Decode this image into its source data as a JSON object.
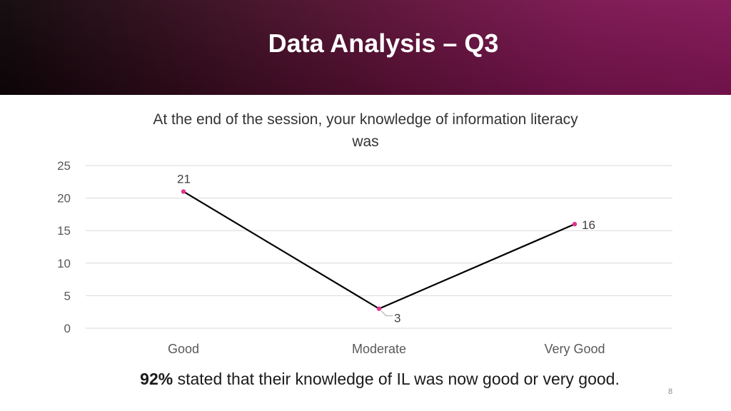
{
  "slide": {
    "title": "Data Analysis – Q3",
    "statement_bold": "92%",
    "statement_rest": " stated that their knowledge of IL was now good or very good.",
    "page_number": "8"
  },
  "colors": {
    "line": "#000000",
    "marker": "#e0338f",
    "grid": "#d9d9d9"
  },
  "chart_data": {
    "type": "line",
    "title_lines": [
      "At the end of the session, your knowledge of information literacy",
      "was"
    ],
    "categories": [
      "Good",
      "Moderate",
      "Very Good"
    ],
    "series": [
      {
        "values": [
          21,
          3,
          16
        ]
      }
    ],
    "yticks": [
      0,
      5,
      10,
      15,
      20,
      25
    ],
    "ylim": [
      0,
      25
    ],
    "grid": true,
    "legend": "none",
    "data_labels": true
  }
}
